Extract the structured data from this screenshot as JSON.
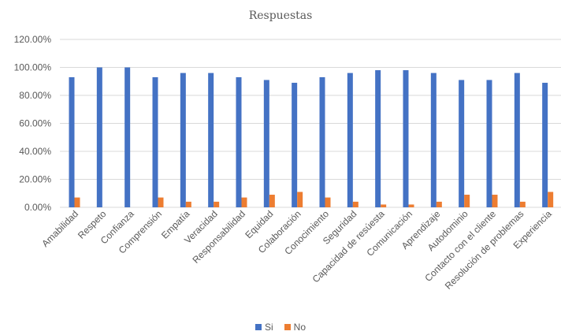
{
  "chart_data": {
    "type": "bar",
    "title": "Respuestas",
    "categories": [
      "Amabilidad",
      "Respeto",
      "Confianza",
      "Comprensión",
      "Empatía",
      "Veracidad",
      "Responsabilidad",
      "Equidad",
      "Colaboración",
      "Conocimiento",
      "Seguridad",
      "Capacidad de resúesta",
      "Comunicación",
      "Aprendizaje",
      "Autodominio",
      "Contacto con el cliente",
      "Resolución de problemas",
      "Experiencia"
    ],
    "series": [
      {
        "name": "Si",
        "color": "#4472c4",
        "values": [
          93,
          100,
          100,
          93,
          96,
          96,
          93,
          91,
          89,
          93,
          96,
          98,
          98,
          96,
          91,
          91,
          96,
          89
        ]
      },
      {
        "name": "No",
        "color": "#ed7d31",
        "values": [
          7,
          0,
          0,
          7,
          4,
          4,
          7,
          9,
          11,
          7,
          4,
          2,
          2,
          4,
          9,
          9,
          4,
          11
        ]
      }
    ],
    "yticks": [
      "120.00%",
      "100.00%",
      "80.00%",
      "60.00%",
      "40.00%",
      "20.00%",
      "0.00%"
    ],
    "ylim": [
      0,
      120
    ],
    "grid": true,
    "legend_position": "bottom"
  }
}
